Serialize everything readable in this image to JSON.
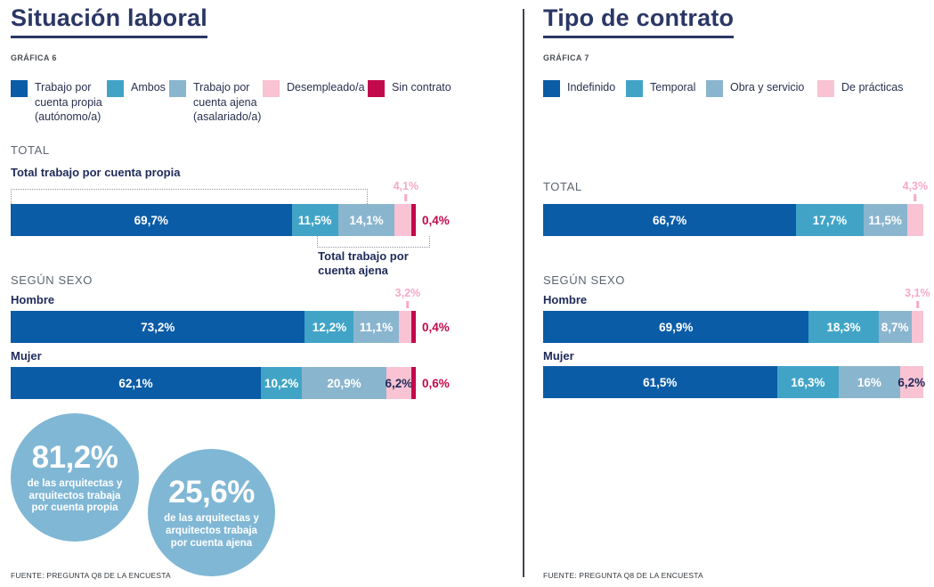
{
  "chart_data": [
    {
      "type": "bar",
      "stacked": true,
      "orientation": "horizontal",
      "title": "Situación laboral",
      "caption": "GRÁFICA 6",
      "legend": [
        "Trabajo por cuenta propia (autónomo/a)",
        "Ambos",
        "Trabajo por cuenta ajena (asalariado/a)",
        "Desempleado/a",
        "Sin contrato"
      ],
      "colors": [
        "#0b5ca6",
        "#41a4c7",
        "#8ab5ce",
        "#f9c3d4",
        "#c2094b"
      ],
      "pink_index": 3,
      "crimson_index": 4,
      "xlim": [
        0,
        100
      ],
      "unit": "%",
      "sections": [
        {
          "label": "TOTAL",
          "bars": [
            {
              "name": "Total",
              "values": [
                69.7,
                11.5,
                14.1,
                4.1,
                0.4
              ]
            }
          ]
        },
        {
          "label": "SEGÚN SEXO",
          "bars": [
            {
              "name": "Hombre",
              "values": [
                73.2,
                12.2,
                11.1,
                3.2,
                0.4
              ]
            },
            {
              "name": "Mujer",
              "values": [
                62.1,
                10.2,
                20.9,
                6.2,
                0.6
              ]
            }
          ]
        }
      ],
      "brackets": [
        {
          "label": "Total trabajo por cuenta propia",
          "side": "above",
          "span": [
            0,
            2
          ]
        },
        {
          "label": "Total trabajo por cuenta ajena",
          "side": "below",
          "span": [
            1,
            3
          ]
        }
      ],
      "highlights": [
        {
          "value": "81,2%",
          "text": "de las arquitectas y arquitectos trabaja por cuenta propia"
        },
        {
          "value": "25,6%",
          "text": "de las arquitectas y arquitectos trabaja por cuenta ajena"
        }
      ],
      "source": "FUENTE: PREGUNTA Q8 DE LA ENCUESTA"
    },
    {
      "type": "bar",
      "stacked": true,
      "orientation": "horizontal",
      "title": "Tipo de contrato",
      "caption": "GRÁFICA 7",
      "legend": [
        "Indefinido",
        "Temporal",
        "Obra y servicio",
        "De prácticas"
      ],
      "colors": [
        "#0b5ca6",
        "#41a4c7",
        "#8ab5ce",
        "#f9c3d4"
      ],
      "pink_index": 3,
      "crimson_index": -1,
      "xlim": [
        0,
        100
      ],
      "unit": "%",
      "sections": [
        {
          "label": "TOTAL",
          "bars": [
            {
              "name": "Total",
              "values": [
                66.7,
                17.7,
                11.5,
                4.3
              ]
            }
          ]
        },
        {
          "label": "SEGÚN SEXO",
          "bars": [
            {
              "name": "Hombre",
              "values": [
                69.9,
                18.3,
                8.7,
                3.1
              ]
            },
            {
              "name": "Mujer",
              "values": [
                61.5,
                16.3,
                16,
                6.2
              ]
            }
          ]
        }
      ],
      "source": "FUENTE: PREGUNTA Q8 DE LA ENCUESTA"
    }
  ]
}
